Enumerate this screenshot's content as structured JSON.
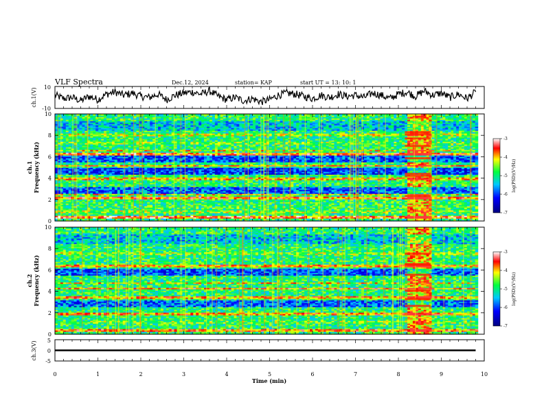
{
  "header": {
    "title": "VLF Spectra",
    "date": "Dec.12, 2024",
    "station": "station= KAP",
    "start": "start  UT =   13: 10: 1"
  },
  "chart_data": [
    {
      "id": "ch1_waveform",
      "type": "line",
      "ylabel": "ch.1(V)",
      "ylim": [
        -10,
        10
      ],
      "xlim": [
        0,
        10
      ],
      "yticks": [
        "10",
        "-10"
      ],
      "x": [
        0.0,
        0.2,
        0.4,
        0.6,
        0.8,
        1.0,
        1.2,
        1.4,
        1.6,
        1.8,
        2.0,
        2.2,
        2.4,
        2.6,
        2.8,
        3.0,
        3.2,
        3.4,
        3.6,
        3.8,
        4.0,
        4.2,
        4.4,
        4.6,
        4.8,
        5.0,
        5.2,
        5.4,
        5.6,
        5.8,
        6.0,
        6.2,
        6.4,
        6.6,
        6.8,
        7.0,
        7.2,
        7.4,
        7.6,
        7.8,
        8.0,
        8.2,
        8.4,
        8.6,
        8.8,
        9.0,
        9.2,
        9.4,
        9.6,
        9.8
      ],
      "values": [
        2,
        -1,
        0,
        -3,
        1,
        -2,
        3,
        5,
        2,
        4,
        1,
        0,
        3,
        -2,
        2,
        4,
        5,
        3,
        6,
        1,
        -2,
        0,
        -3,
        -1,
        -4,
        -2,
        2,
        4,
        3,
        1,
        -1,
        2,
        0,
        3,
        1,
        2,
        0,
        4,
        2,
        -1,
        3,
        5,
        1,
        6,
        2,
        4,
        0,
        3,
        -1,
        5
      ]
    },
    {
      "id": "ch1_spectrogram",
      "type": "heatmap",
      "ylabel": "ch.1\nFrequency (kHz)",
      "ylim": [
        0,
        10
      ],
      "xlim": [
        0,
        10
      ],
      "yticks": [
        "0",
        "2",
        "4",
        "6",
        "8",
        "10"
      ],
      "colorbar": {
        "label": "log(PSD)(V²/Hz)",
        "range": [
          -7,
          -3
        ],
        "ticks": [
          "-3",
          "-4",
          "-5",
          "-6",
          "-7"
        ]
      },
      "bands": [
        {
          "f": 0.35,
          "level": -3.6
        },
        {
          "f": 0.9,
          "level": -4.5
        },
        {
          "f": 1.3,
          "level": -4.8
        },
        {
          "f": 2.2,
          "level": -3.8
        },
        {
          "f": 2.5,
          "level": -4.2
        },
        {
          "f": 3.3,
          "level": -5.2
        },
        {
          "f": 4.0,
          "level": -4.0
        },
        {
          "f": 4.8,
          "level": -4.3
        },
        {
          "f": 5.2,
          "level": -3.8
        },
        {
          "f": 6.3,
          "level": -3.7
        },
        {
          "f": 6.6,
          "level": -4.2
        },
        {
          "f": 7.3,
          "level": -4.6
        },
        {
          "f": 8.1,
          "level": -4.4
        }
      ],
      "burst": {
        "t_start": 8.15,
        "t_end": 8.75
      }
    },
    {
      "id": "ch2_spectrogram",
      "type": "heatmap",
      "ylabel": "ch.2\nFrequency (kHz)",
      "ylim": [
        0,
        10
      ],
      "xlim": [
        0,
        10
      ],
      "yticks": [
        "0",
        "2",
        "4",
        "6",
        "8",
        "10"
      ],
      "colorbar": {
        "label": "log(PSD)(V²/Hz)",
        "range": [
          -7,
          -3
        ],
        "ticks": [
          "-3",
          "-4",
          "-5",
          "-6",
          "-7"
        ]
      },
      "bands": [
        {
          "f": 0.4,
          "level": -3.8
        },
        {
          "f": 1.2,
          "level": -4.6
        },
        {
          "f": 1.9,
          "level": -3.9
        },
        {
          "f": 2.8,
          "level": -4.7
        },
        {
          "f": 3.5,
          "level": -3.9
        },
        {
          "f": 4.3,
          "level": -3.8
        },
        {
          "f": 4.8,
          "level": -4.2
        },
        {
          "f": 6.0,
          "level": -4.4
        },
        {
          "f": 6.4,
          "level": -3.9
        },
        {
          "f": 7.6,
          "level": -4.5
        },
        {
          "f": 8.6,
          "level": -4.6
        },
        {
          "f": 9.1,
          "level": -3.5
        }
      ],
      "burst": {
        "t_start": 8.15,
        "t_end": 8.75
      }
    },
    {
      "id": "ch3_waveform",
      "type": "line",
      "ylabel": "ch.3(V)",
      "ylim": [
        -5,
        5
      ],
      "xlim": [
        0,
        10
      ],
      "yticks": [
        "5",
        "0",
        "-5"
      ],
      "level": 0,
      "thickness_v": 0.8,
      "t_end": 9.8
    }
  ],
  "xaxis": {
    "label": "Time (min)",
    "ticks": [
      "0",
      "1",
      "2",
      "3",
      "4",
      "5",
      "6",
      "7",
      "8",
      "9",
      "10"
    ]
  }
}
